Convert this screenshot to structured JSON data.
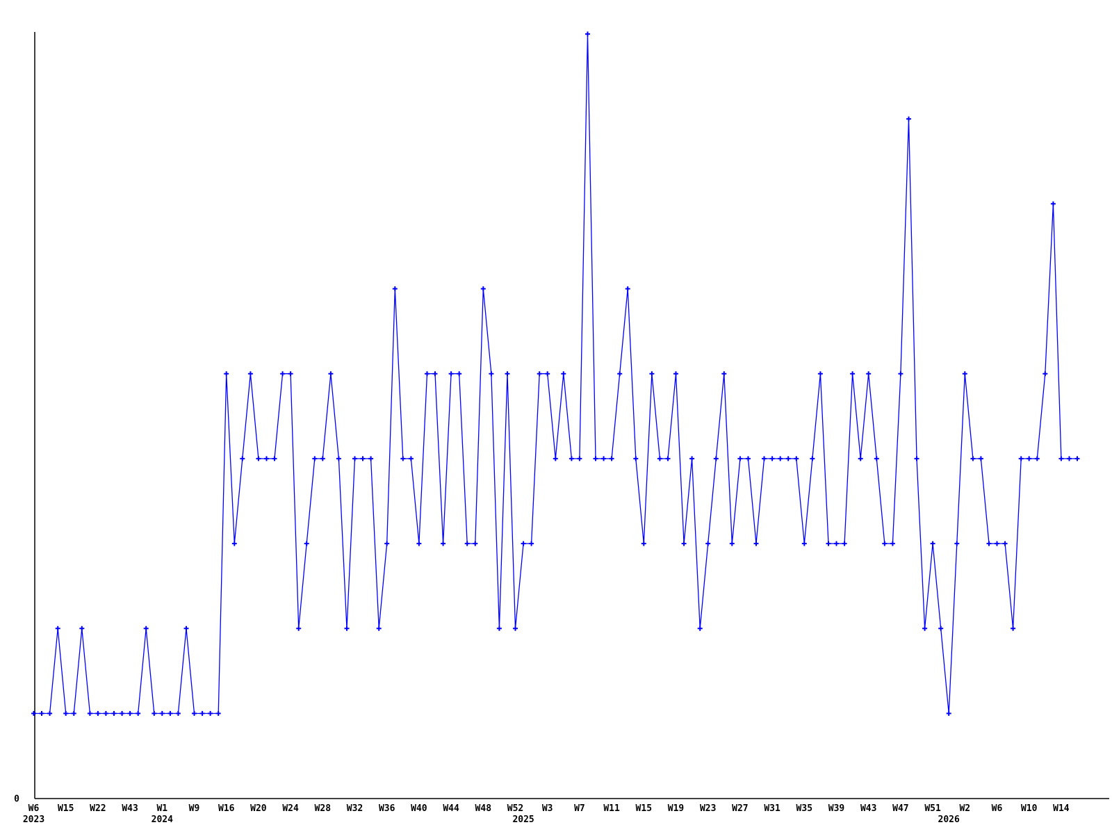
{
  "chart_data": {
    "type": "line",
    "title": "",
    "xlabel": "",
    "ylabel": "",
    "y_zero_label": "0",
    "ylim": [
      0,
      9
    ],
    "grid": false,
    "legend": null,
    "line_color": "#0000ff",
    "axis_color": "#000000",
    "marker": "plus",
    "x_tick_every_n_points": 4,
    "x_tick_labels": [
      "W6",
      "W15",
      "W22",
      "W43",
      "W1",
      "W9",
      "W16",
      "W20",
      "W24",
      "W28",
      "W32",
      "W36",
      "W40",
      "W44",
      "W48",
      "W52",
      "W3",
      "W7",
      "W11",
      "W15",
      "W19",
      "W23",
      "W27",
      "W31",
      "W35",
      "W39",
      "W43",
      "W47",
      "W51",
      "W2",
      "W6",
      "W10",
      "W14"
    ],
    "year_labels": [
      {
        "text": "2023",
        "point_index": 0
      },
      {
        "text": "2024",
        "point_index": 16
      },
      {
        "text": "2025",
        "point_index": 61
      },
      {
        "text": "2026",
        "point_index": 114
      }
    ],
    "values": [
      1,
      1,
      1,
      2,
      1,
      1,
      2,
      1,
      1,
      1,
      1,
      1,
      1,
      1,
      2,
      1,
      1,
      1,
      1,
      2,
      1,
      1,
      1,
      1,
      5,
      3,
      4,
      5,
      4,
      4,
      4,
      5,
      5,
      2,
      3,
      4,
      4,
      5,
      4,
      2,
      4,
      4,
      4,
      2,
      3,
      6,
      4,
      4,
      3,
      5,
      5,
      3,
      5,
      5,
      3,
      3,
      6,
      5,
      2,
      5,
      2,
      3,
      3,
      5,
      5,
      4,
      5,
      4,
      4,
      9,
      4,
      4,
      4,
      5,
      6,
      4,
      3,
      5,
      4,
      4,
      5,
      3,
      4,
      2,
      3,
      4,
      5,
      3,
      4,
      4,
      3,
      4,
      4,
      4,
      4,
      4,
      3,
      4,
      5,
      3,
      3,
      3,
      5,
      4,
      5,
      4,
      3,
      3,
      5,
      8,
      4,
      2,
      3,
      2,
      1,
      3,
      5,
      4,
      4,
      3,
      3,
      3,
      2,
      4,
      4,
      4,
      5,
      7,
      4,
      4,
      4
    ]
  }
}
